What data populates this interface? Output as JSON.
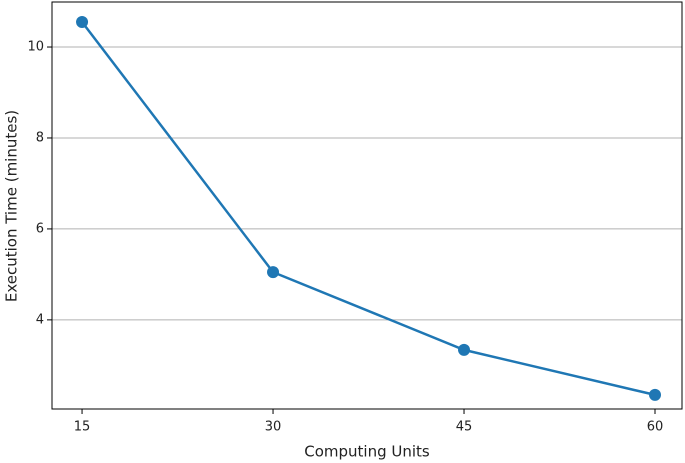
{
  "chart_data": {
    "type": "line",
    "x_label": "Computing Units",
    "y_label": "Execution Time (minutes)",
    "x": [
      15,
      30,
      45,
      60
    ],
    "series": [
      {
        "name": "Execution Time",
        "color": "#1f77b4",
        "values": [
          10.55,
          5.05,
          3.34,
          2.35
        ]
      }
    ],
    "xlim": [
      12.64,
      62.12
    ],
    "xticks": [
      15,
      30,
      45,
      60
    ],
    "ylim": [
      2.04,
      10.99
    ],
    "yticks": [
      4,
      6,
      8,
      10
    ],
    "grid": true
  }
}
